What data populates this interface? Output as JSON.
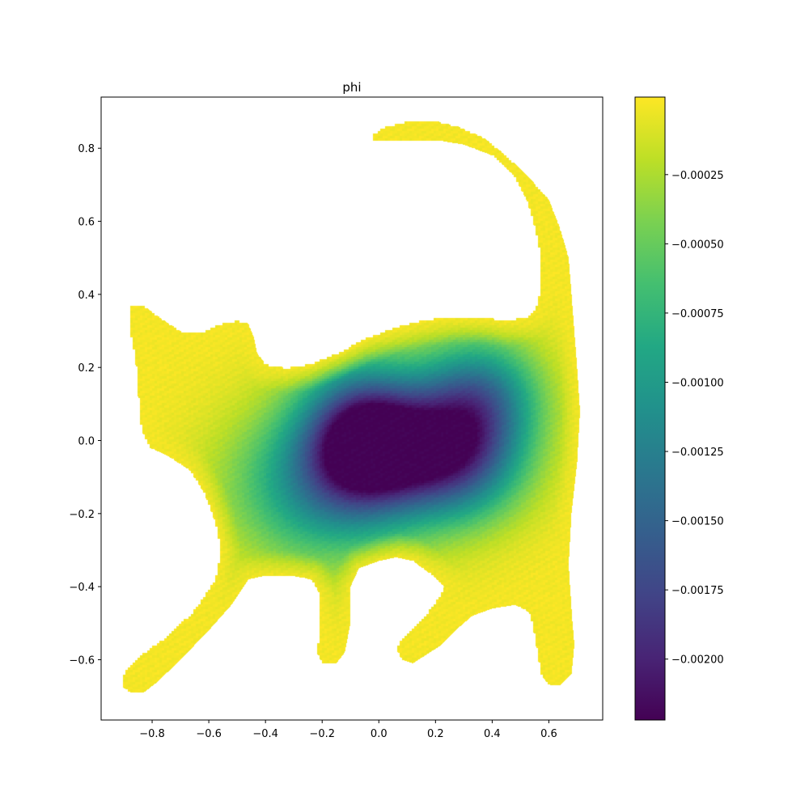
{
  "chart_data": {
    "type": "scatter",
    "title": "phi",
    "xlabel": "",
    "ylabel": "",
    "xlim": [
      -0.98,
      0.79
    ],
    "ylim": [
      -0.765,
      0.94
    ],
    "x_ticks": [
      -0.8,
      -0.6,
      -0.4,
      -0.2,
      0.0,
      0.2,
      0.4,
      0.6
    ],
    "x_tick_labels": [
      "−0.8",
      "−0.6",
      "−0.4",
      "−0.2",
      "0.0",
      "0.2",
      "0.4",
      "0.6"
    ],
    "y_ticks": [
      -0.6,
      -0.4,
      -0.2,
      0.0,
      0.2,
      0.4,
      0.6,
      0.8
    ],
    "y_tick_labels": [
      "−0.6",
      "−0.4",
      "−0.2",
      "0.0",
      "0.2",
      "0.4",
      "0.6",
      "0.8"
    ],
    "grid": false,
    "colormap": "viridis",
    "colorbar": {
      "min": -0.00222,
      "max": 3e-05,
      "ticks": [
        -0.00025,
        -0.0005,
        -0.00075,
        -0.001,
        -0.00125,
        -0.0015,
        -0.00175,
        -0.002
      ],
      "tick_labels": [
        "−0.00025",
        "−0.00050",
        "−0.00075",
        "−0.00100",
        "−0.00125",
        "−0.00150",
        "−0.00175",
        "−0.00200"
      ]
    },
    "shape_outline": [
      [
        -0.88,
        0.37
      ],
      [
        -0.83,
        0.37
      ],
      [
        -0.76,
        0.33
      ],
      [
        -0.7,
        0.3
      ],
      [
        -0.62,
        0.3
      ],
      [
        -0.56,
        0.32
      ],
      [
        -0.5,
        0.33
      ],
      [
        -0.46,
        0.32
      ],
      [
        -0.44,
        0.28
      ],
      [
        -0.43,
        0.24
      ],
      [
        -0.4,
        0.21
      ],
      [
        -0.33,
        0.2
      ],
      [
        -0.25,
        0.21
      ],
      [
        -0.15,
        0.24
      ],
      [
        -0.05,
        0.28
      ],
      [
        0.05,
        0.31
      ],
      [
        0.15,
        0.33
      ],
      [
        0.25,
        0.34
      ],
      [
        0.35,
        0.34
      ],
      [
        0.45,
        0.33
      ],
      [
        0.52,
        0.34
      ],
      [
        0.55,
        0.36
      ],
      [
        0.57,
        0.42
      ],
      [
        0.57,
        0.5
      ],
      [
        0.55,
        0.58
      ],
      [
        0.52,
        0.66
      ],
      [
        0.47,
        0.73
      ],
      [
        0.4,
        0.78
      ],
      [
        0.3,
        0.81
      ],
      [
        0.22,
        0.82
      ],
      [
        0.14,
        0.82
      ],
      [
        0.02,
        0.82
      ],
      [
        -0.02,
        0.82
      ],
      [
        -0.02,
        0.84
      ],
      [
        0.02,
        0.86
      ],
      [
        0.1,
        0.875
      ],
      [
        0.2,
        0.875
      ],
      [
        0.28,
        0.86
      ],
      [
        0.37,
        0.83
      ],
      [
        0.45,
        0.78
      ],
      [
        0.53,
        0.72
      ],
      [
        0.6,
        0.66
      ],
      [
        0.64,
        0.58
      ],
      [
        0.67,
        0.5
      ],
      [
        0.68,
        0.4
      ],
      [
        0.69,
        0.3
      ],
      [
        0.7,
        0.2
      ],
      [
        0.71,
        0.08
      ],
      [
        0.7,
        -0.06
      ],
      [
        0.68,
        -0.2
      ],
      [
        0.67,
        -0.34
      ],
      [
        0.68,
        -0.46
      ],
      [
        0.69,
        -0.56
      ],
      [
        0.68,
        -0.64
      ],
      [
        0.64,
        -0.67
      ],
      [
        0.6,
        -0.67
      ],
      [
        0.57,
        -0.64
      ],
      [
        0.55,
        -0.54
      ],
      [
        0.53,
        -0.47
      ],
      [
        0.48,
        -0.45
      ],
      [
        0.4,
        -0.46
      ],
      [
        0.33,
        -0.48
      ],
      [
        0.27,
        -0.52
      ],
      [
        0.22,
        -0.56
      ],
      [
        0.16,
        -0.59
      ],
      [
        0.12,
        -0.61
      ],
      [
        0.08,
        -0.6
      ],
      [
        0.06,
        -0.57
      ],
      [
        0.08,
        -0.54
      ],
      [
        0.12,
        -0.51
      ],
      [
        0.17,
        -0.47
      ],
      [
        0.2,
        -0.44
      ],
      [
        0.23,
        -0.4
      ],
      [
        0.19,
        -0.37
      ],
      [
        0.12,
        -0.33
      ],
      [
        0.06,
        -0.32
      ],
      [
        0.0,
        -0.33
      ],
      [
        -0.07,
        -0.35
      ],
      [
        -0.1,
        -0.4
      ],
      [
        -0.1,
        -0.5
      ],
      [
        -0.12,
        -0.58
      ],
      [
        -0.15,
        -0.61
      ],
      [
        -0.2,
        -0.61
      ],
      [
        -0.22,
        -0.58
      ],
      [
        -0.21,
        -0.5
      ],
      [
        -0.21,
        -0.42
      ],
      [
        -0.24,
        -0.38
      ],
      [
        -0.31,
        -0.37
      ],
      [
        -0.4,
        -0.37
      ],
      [
        -0.46,
        -0.38
      ],
      [
        -0.52,
        -0.45
      ],
      [
        -0.6,
        -0.52
      ],
      [
        -0.7,
        -0.6
      ],
      [
        -0.78,
        -0.66
      ],
      [
        -0.83,
        -0.69
      ],
      [
        -0.88,
        -0.69
      ],
      [
        -0.91,
        -0.67
      ],
      [
        -0.9,
        -0.63
      ],
      [
        -0.85,
        -0.59
      ],
      [
        -0.76,
        -0.54
      ],
      [
        -0.66,
        -0.47
      ],
      [
        -0.58,
        -0.38
      ],
      [
        -0.56,
        -0.3
      ],
      [
        -0.58,
        -0.22
      ],
      [
        -0.62,
        -0.14
      ],
      [
        -0.67,
        -0.08
      ],
      [
        -0.75,
        -0.04
      ],
      [
        -0.81,
        -0.02
      ],
      [
        -0.84,
        0.03
      ],
      [
        -0.85,
        0.12
      ],
      [
        -0.86,
        0.22
      ],
      [
        -0.88,
        0.3
      ]
    ],
    "potential_wells": [
      {
        "x": -0.05,
        "y": 0.01,
        "sx": 0.15,
        "sy": 0.13,
        "value": -0.00222
      },
      {
        "x": 0.25,
        "y": -0.04,
        "sx": 0.17,
        "sy": 0.12,
        "value": -0.00185
      },
      {
        "x": 0.35,
        "y": 0.13,
        "sx": 0.15,
        "sy": 0.11,
        "value": -0.00115
      },
      {
        "x": -0.22,
        "y": -0.12,
        "sx": 0.22,
        "sy": 0.15,
        "value": -0.001
      }
    ],
    "background_value": 0.0,
    "max_depth": -0.00222
  }
}
